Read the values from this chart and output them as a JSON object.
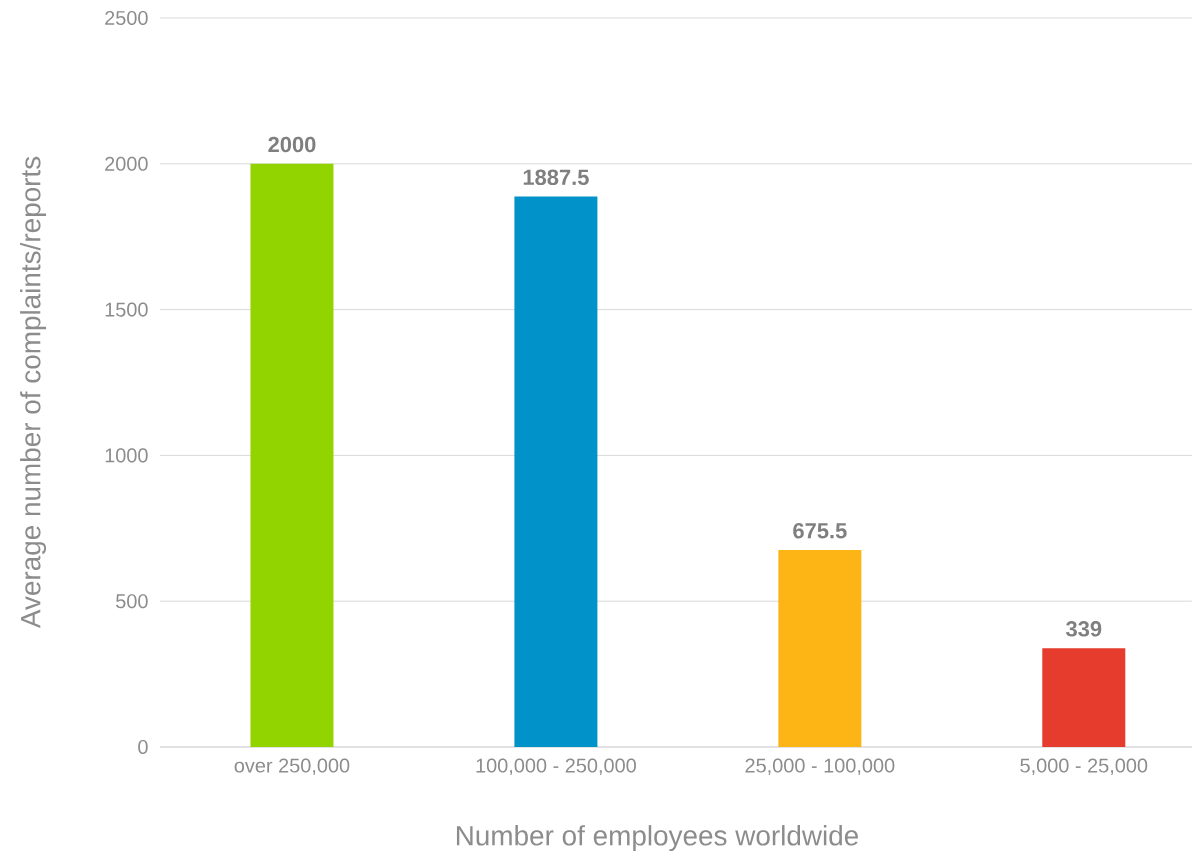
{
  "chart_data": {
    "type": "bar",
    "xlabel": "Number of employees worldwide",
    "ylabel": "Average number of complaints/reports",
    "categories": [
      "over 250,000",
      "100,000 - 250,000",
      "25,000 - 100,000",
      "5,000 - 25,000"
    ],
    "values": [
      2000,
      1887.5,
      675.5,
      339
    ],
    "colors": [
      "#92d400",
      "#0092c8",
      "#fdb515",
      "#e53c2e"
    ],
    "ylim": [
      0,
      2500
    ],
    "yticks": [
      0,
      500,
      1000,
      1500,
      2000,
      2500
    ],
    "grid": "y",
    "data_labels": true
  }
}
